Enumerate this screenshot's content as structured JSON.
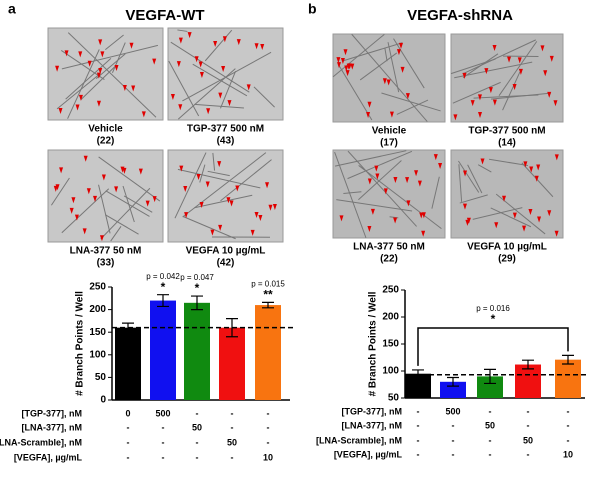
{
  "panels": [
    {
      "label": "a",
      "title": "VEGFA-WT",
      "images": [
        {
          "caption": "Vehicle",
          "count": "(22)"
        },
        {
          "caption": "TGP-377 500 nM",
          "count": "(43)"
        },
        {
          "caption": "LNA-377 50 nM",
          "count": "(33)"
        },
        {
          "caption": "VEGFA 10 µg/mL",
          "count": "(42)"
        }
      ],
      "conditions": [
        {
          "label": "[TGP-377], nM",
          "cells": [
            "0",
            "500",
            "-",
            "-",
            "-"
          ]
        },
        {
          "label": "[LNA-377], nM",
          "cells": [
            "-",
            "-",
            "50",
            "-",
            "-"
          ]
        },
        {
          "label": "[LNA-Scramble], nM",
          "cells": [
            "-",
            "-",
            "-",
            "50",
            "-"
          ]
        },
        {
          "label": "[VEGFA], µg/mL",
          "cells": [
            "-",
            "-",
            "-",
            "-",
            "10"
          ]
        }
      ]
    },
    {
      "label": "b",
      "title": "VEGFA-shRNA",
      "images": [
        {
          "caption": "Vehicle",
          "count": "(17)"
        },
        {
          "caption": "TGP-377 500 nM",
          "count": "(14)"
        },
        {
          "caption": "LNA-377 50 nM",
          "count": "(22)"
        },
        {
          "caption": "VEGFA 10 µg/mL",
          "count": "(29)"
        }
      ],
      "conditions": [
        {
          "label": "[TGP-377], nM",
          "cells": [
            "-",
            "500",
            "-",
            "-",
            "-"
          ]
        },
        {
          "label": "[LNA-377],  nM",
          "cells": [
            "-",
            "-",
            "50",
            "-",
            "-"
          ]
        },
        {
          "label": "[LNA-Scramble], nM",
          "cells": [
            "-",
            "-",
            "-",
            "50",
            "-"
          ]
        },
        {
          "label": "[VEGFA], µg/mL",
          "cells": [
            "-",
            "-",
            "-",
            "-",
            "10"
          ]
        }
      ]
    }
  ],
  "chart_data": [
    {
      "type": "bar",
      "y_label": "# Branch  Points / Well",
      "values": [
        160,
        220,
        215,
        160,
        210
      ],
      "errors": [
        10,
        13,
        15,
        20,
        6
      ],
      "colors": [
        "#000000",
        "#1010f0",
        "#108a10",
        "#f01010",
        "#f87410"
      ],
      "ylim": [
        0,
        250
      ],
      "yticks": [
        0,
        50,
        100,
        150,
        200,
        250
      ],
      "baseline": 160,
      "p_labels": [
        null,
        "p = 0.042",
        "p = 0.047",
        null,
        "p = 0.015"
      ],
      "stars": [
        null,
        "*",
        "*",
        null,
        "**"
      ]
    },
    {
      "type": "bar",
      "y_label": "# Branch  Points / Well",
      "values": [
        95,
        80,
        90,
        112,
        121
      ],
      "errors": [
        7,
        8,
        13,
        8,
        8
      ],
      "colors": [
        "#000000",
        "#1010f0",
        "#108a10",
        "#f01010",
        "#f87410"
      ],
      "ylim": [
        50,
        250
      ],
      "yticks": [
        50,
        100,
        150,
        200,
        250
      ],
      "baseline": 93,
      "bracket": {
        "label": "p = 0.016",
        "stars": "*"
      }
    }
  ]
}
